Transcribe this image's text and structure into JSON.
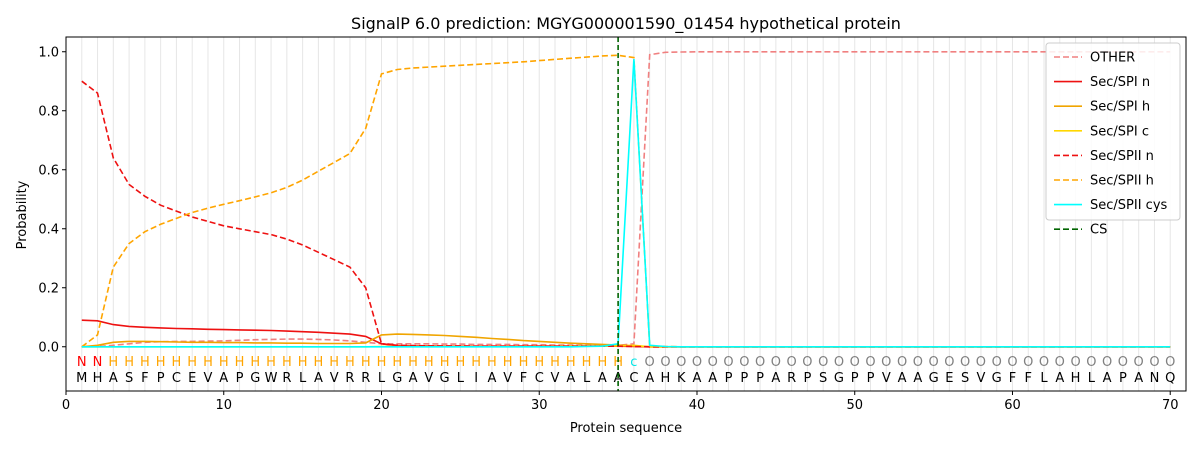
{
  "chart_data": {
    "type": "line",
    "title": "SignalP 6.0 prediction: MGYG000001590_01454 hypothetical protein",
    "xlabel": "Protein sequence",
    "ylabel": "Probability",
    "xlim": [
      0,
      71
    ],
    "ylim": [
      -0.15,
      1.05
    ],
    "x_ticks": [
      0,
      10,
      20,
      30,
      40,
      50,
      60,
      70
    ],
    "y_ticks": [
      0.0,
      0.2,
      0.4,
      0.6,
      0.8,
      1.0
    ],
    "x_tick_labels": [
      "0",
      "10",
      "20",
      "30",
      "40",
      "50",
      "60",
      "70"
    ],
    "y_tick_labels": [
      "0.0",
      "0.2",
      "0.4",
      "0.6",
      "0.8",
      "1.0"
    ],
    "grid": "vertical lines at each residue",
    "legend_position": "top-right",
    "sequence": [
      "M",
      "H",
      "A",
      "S",
      "F",
      "P",
      "C",
      "E",
      "V",
      "A",
      "P",
      "G",
      "W",
      "R",
      "L",
      "A",
      "V",
      "R",
      "R",
      "L",
      "G",
      "A",
      "V",
      "G",
      "L",
      "I",
      "A",
      "V",
      "F",
      "C",
      "V",
      "A",
      "L",
      "A",
      "A",
      "C",
      "A",
      "H",
      "K",
      "A",
      "A",
      "P",
      "P",
      "P",
      "A",
      "R",
      "P",
      "S",
      "G",
      "P",
      "P",
      "V",
      "A",
      "A",
      "G",
      "E",
      "S",
      "V",
      "G",
      "F",
      "F",
      "L",
      "A",
      "H",
      "L",
      "A",
      "P",
      "A",
      "N",
      "Q"
    ],
    "region_labels": [
      "N",
      "N",
      "H",
      "H",
      "H",
      "H",
      "H",
      "H",
      "H",
      "H",
      "H",
      "H",
      "H",
      "H",
      "H",
      "H",
      "H",
      "H",
      "H",
      "H",
      "H",
      "H",
      "H",
      "H",
      "H",
      "H",
      "H",
      "H",
      "H",
      "H",
      "H",
      "H",
      "H",
      "H",
      "H",
      "c",
      "O",
      "O",
      "O",
      "O",
      "O",
      "O",
      "O",
      "O",
      "O",
      "O",
      "O",
      "O",
      "O",
      "O",
      "O",
      "O",
      "O",
      "O",
      "O",
      "O",
      "O",
      "O",
      "O",
      "O",
      "O",
      "O",
      "O",
      "O",
      "O",
      "O",
      "O",
      "O",
      "O",
      "O"
    ],
    "region_colors": {
      "N": "#ff0000",
      "H": "#ffa500",
      "c": "#00e5e5",
      "O": "#808080"
    },
    "cleavage_site": 35,
    "series": [
      {
        "name": "OTHER",
        "color": "#f08080",
        "dash": "dashed",
        "values": [
          0.0,
          0.001,
          0.005,
          0.01,
          0.015,
          0.017,
          0.018,
          0.018,
          0.019,
          0.02,
          0.022,
          0.024,
          0.025,
          0.026,
          0.026,
          0.025,
          0.023,
          0.02,
          0.015,
          0.01,
          0.01,
          0.01,
          0.01,
          0.009,
          0.009,
          0.008,
          0.008,
          0.008,
          0.007,
          0.007,
          0.006,
          0.006,
          0.006,
          0.005,
          0.005,
          0.01,
          0.99,
          0.998,
          0.999,
          1.0,
          1.0,
          1.0,
          1.0,
          1.0,
          1.0,
          1.0,
          1.0,
          1.0,
          1.0,
          1.0,
          1.0,
          1.0,
          1.0,
          1.0,
          1.0,
          1.0,
          1.0,
          1.0,
          1.0,
          1.0,
          1.0,
          1.0,
          1.0,
          1.0,
          1.0,
          1.0,
          1.0,
          1.0,
          1.0,
          1.0
        ]
      },
      {
        "name": "Sec/SPI n",
        "color": "#ee1111",
        "dash": "solid",
        "values": [
          0.09,
          0.088,
          0.075,
          0.069,
          0.066,
          0.064,
          0.062,
          0.061,
          0.059,
          0.058,
          0.057,
          0.056,
          0.055,
          0.053,
          0.051,
          0.049,
          0.046,
          0.043,
          0.035,
          0.01,
          0.004,
          0.003,
          0.003,
          0.002,
          0.002,
          0.002,
          0.002,
          0.002,
          0.002,
          0.002,
          0.002,
          0.002,
          0.002,
          0.002,
          0.002,
          0.001,
          0.0,
          0.0,
          0.0,
          0.0,
          0.0,
          0.0,
          0.0,
          0.0,
          0.0,
          0.0,
          0.0,
          0.0,
          0.0,
          0.0,
          0.0,
          0.0,
          0.0,
          0.0,
          0.0,
          0.0,
          0.0,
          0.0,
          0.0,
          0.0,
          0.0,
          0.0,
          0.0,
          0.0,
          0.0,
          0.0,
          0.0,
          0.0,
          0.0,
          0.0
        ]
      },
      {
        "name": "Sec/SPI h",
        "color": "#f0a500",
        "dash": "solid",
        "values": [
          0.0,
          0.005,
          0.015,
          0.018,
          0.018,
          0.017,
          0.016,
          0.015,
          0.015,
          0.014,
          0.014,
          0.013,
          0.013,
          0.012,
          0.012,
          0.011,
          0.011,
          0.011,
          0.013,
          0.04,
          0.043,
          0.042,
          0.04,
          0.038,
          0.035,
          0.032,
          0.028,
          0.025,
          0.021,
          0.018,
          0.015,
          0.012,
          0.01,
          0.008,
          0.006,
          0.003,
          0.0,
          0.0,
          0.0,
          0.0,
          0.0,
          0.0,
          0.0,
          0.0,
          0.0,
          0.0,
          0.0,
          0.0,
          0.0,
          0.0,
          0.0,
          0.0,
          0.0,
          0.0,
          0.0,
          0.0,
          0.0,
          0.0,
          0.0,
          0.0,
          0.0,
          0.0,
          0.0,
          0.0,
          0.0,
          0.0,
          0.0,
          0.0,
          0.0,
          0.0
        ]
      },
      {
        "name": "Sec/SPI c",
        "color": "#ffd700",
        "dash": "solid",
        "values": [
          0.0,
          0.0,
          0.0,
          0.0,
          0.0,
          0.0,
          0.0,
          0.0,
          0.0,
          0.0,
          0.0,
          0.0,
          0.0,
          0.0,
          0.0,
          0.0,
          0.0,
          0.0,
          0.0,
          0.001,
          0.001,
          0.001,
          0.001,
          0.001,
          0.001,
          0.001,
          0.001,
          0.001,
          0.001,
          0.001,
          0.001,
          0.002,
          0.002,
          0.002,
          0.003,
          0.005,
          0.0,
          0.0,
          0.0,
          0.0,
          0.0,
          0.0,
          0.0,
          0.0,
          0.0,
          0.0,
          0.0,
          0.0,
          0.0,
          0.0,
          0.0,
          0.0,
          0.0,
          0.0,
          0.0,
          0.0,
          0.0,
          0.0,
          0.0,
          0.0,
          0.0,
          0.0,
          0.0,
          0.0,
          0.0,
          0.0,
          0.0,
          0.0,
          0.0,
          0.0
        ]
      },
      {
        "name": "Sec/SPII n",
        "color": "#ee1111",
        "dash": "dashed",
        "values": [
          0.9,
          0.86,
          0.64,
          0.55,
          0.51,
          0.48,
          0.46,
          0.44,
          0.425,
          0.41,
          0.4,
          0.39,
          0.38,
          0.365,
          0.345,
          0.32,
          0.295,
          0.27,
          0.2,
          0.01,
          0.005,
          0.004,
          0.003,
          0.003,
          0.003,
          0.002,
          0.002,
          0.002,
          0.002,
          0.002,
          0.002,
          0.002,
          0.002,
          0.002,
          0.002,
          0.001,
          0.0,
          0.0,
          0.0,
          0.0,
          0.0,
          0.0,
          0.0,
          0.0,
          0.0,
          0.0,
          0.0,
          0.0,
          0.0,
          0.0,
          0.0,
          0.0,
          0.0,
          0.0,
          0.0,
          0.0,
          0.0,
          0.0,
          0.0,
          0.0,
          0.0,
          0.0,
          0.0,
          0.0,
          0.0,
          0.0,
          0.0,
          0.0,
          0.0,
          0.0
        ]
      },
      {
        "name": "Sec/SPII h",
        "color": "#ffa500",
        "dash": "dashed",
        "values": [
          0.0,
          0.04,
          0.27,
          0.35,
          0.39,
          0.415,
          0.435,
          0.455,
          0.47,
          0.483,
          0.495,
          0.508,
          0.522,
          0.54,
          0.565,
          0.595,
          0.625,
          0.655,
          0.74,
          0.925,
          0.94,
          0.945,
          0.948,
          0.951,
          0.954,
          0.957,
          0.96,
          0.963,
          0.966,
          0.97,
          0.974,
          0.978,
          0.982,
          0.986,
          0.988,
          0.98,
          0.003,
          0.001,
          0.0,
          0.0,
          0.0,
          0.0,
          0.0,
          0.0,
          0.0,
          0.0,
          0.0,
          0.0,
          0.0,
          0.0,
          0.0,
          0.0,
          0.0,
          0.0,
          0.0,
          0.0,
          0.0,
          0.0,
          0.0,
          0.0,
          0.0,
          0.0,
          0.0,
          0.0,
          0.0,
          0.0,
          0.0,
          0.0,
          0.0,
          0.0
        ]
      },
      {
        "name": "Sec/SPII cys",
        "color": "#00ffff",
        "dash": "solid",
        "values": [
          0.0,
          0.0,
          0.0,
          0.0,
          0.0,
          0.0,
          0.0,
          0.0,
          0.0,
          0.0,
          0.0,
          0.0,
          0.0,
          0.0,
          0.0,
          0.0,
          0.0,
          0.0,
          0.0,
          0.0,
          0.0,
          0.0,
          0.0,
          0.0,
          0.0,
          0.0,
          0.0,
          0.0,
          0.0,
          0.0,
          0.0,
          0.0,
          0.001,
          0.002,
          0.01,
          0.975,
          0.005,
          0.001,
          0.0,
          0.0,
          0.0,
          0.0,
          0.0,
          0.0,
          0.0,
          0.0,
          0.0,
          0.0,
          0.0,
          0.0,
          0.0,
          0.0,
          0.0,
          0.0,
          0.0,
          0.0,
          0.0,
          0.0,
          0.0,
          0.0,
          0.0,
          0.0,
          0.0,
          0.0,
          0.0,
          0.0,
          0.0,
          0.0,
          0.0,
          0.0
        ]
      },
      {
        "name": "CS",
        "color": "#006400",
        "dash": "dashed",
        "values": []
      }
    ]
  }
}
